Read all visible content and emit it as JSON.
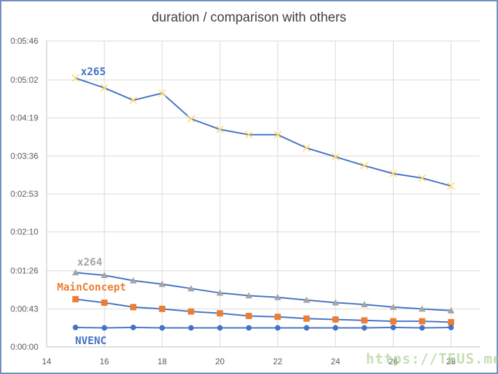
{
  "chart_data": {
    "type": "line",
    "title": "duration / comparison with others",
    "xlabel": "",
    "ylabel": "",
    "xlim": [
      14,
      29
    ],
    "x_ticks": [
      14,
      16,
      18,
      20,
      22,
      24,
      26,
      28
    ],
    "ylim_seconds": [
      0,
      346
    ],
    "y_ticks": [
      {
        "seconds": 0,
        "label": "0:00:00"
      },
      {
        "seconds": 43,
        "label": "0:00:43"
      },
      {
        "seconds": 86,
        "label": "0:01:26"
      },
      {
        "seconds": 130,
        "label": "0:02:10"
      },
      {
        "seconds": 173,
        "label": "0:02:53"
      },
      {
        "seconds": 216,
        "label": "0:03:36"
      },
      {
        "seconds": 259,
        "label": "0:04:19"
      },
      {
        "seconds": 302,
        "label": "0:05:02"
      },
      {
        "seconds": 346,
        "label": "0:05:46"
      }
    ],
    "grid": true,
    "legend": "none",
    "x": [
      15,
      16,
      17,
      18,
      19,
      20,
      21,
      22,
      23,
      24,
      25,
      26,
      27,
      28
    ],
    "series": [
      {
        "name": "x265",
        "label_color": "#4472c4",
        "line_color": "#4472c4",
        "marker": "x",
        "marker_color": "#ffd966",
        "values_seconds": [
          304,
          293,
          279,
          287,
          258,
          246,
          240,
          240,
          225,
          215,
          205,
          196,
          191,
          182
        ]
      },
      {
        "name": "x264",
        "label_color": "#a5a5a5",
        "line_color": "#4472c4",
        "marker": "triangle",
        "marker_color": "#a5a5a5",
        "values_seconds": [
          84,
          81,
          75,
          71,
          66,
          61,
          58,
          56,
          53,
          50,
          48,
          45,
          43,
          41
        ]
      },
      {
        "name": "MainConcept",
        "label_color": "#ed7d31",
        "line_color": "#4472c4",
        "marker": "square",
        "marker_color": "#ed7d31",
        "values_seconds": [
          54,
          50,
          45,
          43,
          40,
          38,
          35,
          34,
          32,
          31,
          30,
          29,
          29,
          28
        ]
      },
      {
        "name": "NVENC",
        "label_color": "#4472c4",
        "line_color": "#4472c4",
        "marker": "circle",
        "marker_color": "#4472c4",
        "values_seconds": [
          22,
          21.5,
          22,
          21.5,
          21.5,
          21.5,
          21.5,
          21.5,
          21.5,
          21.5,
          21.5,
          22,
          21.5,
          22
        ]
      }
    ]
  },
  "watermark": "https://TEUS.me"
}
